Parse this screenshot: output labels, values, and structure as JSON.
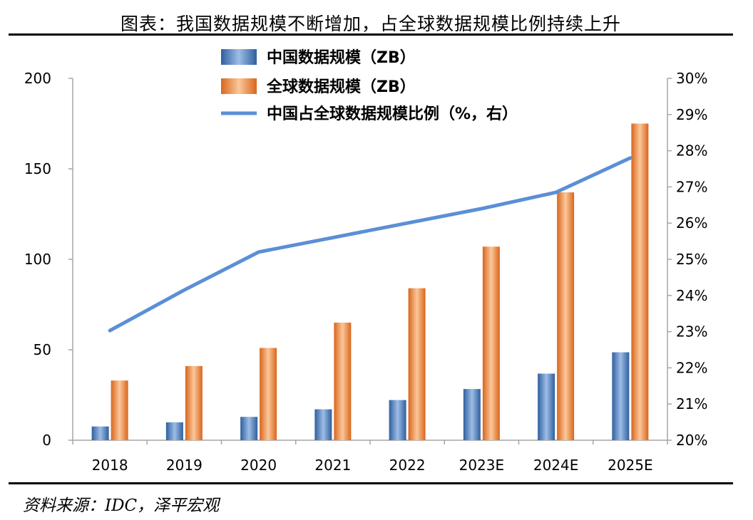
{
  "page": {
    "title": "图表：我国数据规模不断增加，占全球数据规模比例持续上升",
    "source": "资料来源：IDC，泽平宏观"
  },
  "chart_data": {
    "type": "bar",
    "title": "图表：我国数据规模不断增加，占全球数据规模比例持续上升",
    "categories": [
      "2018",
      "2019",
      "2020",
      "2021",
      "2022",
      "2023E",
      "2024E",
      "2025E"
    ],
    "series": [
      {
        "name": "中国数据规模（ZB）",
        "type": "bar",
        "axis": "left",
        "color": "#4a7ebb",
        "values": [
          7.6,
          9.9,
          12.9,
          17.1,
          22.2,
          28.3,
          36.8,
          48.6
        ]
      },
      {
        "name": "全球数据规模（ZB）",
        "type": "bar",
        "axis": "left",
        "color": "#ed7d31",
        "values": [
          33,
          41,
          51,
          65,
          84,
          107,
          137,
          175
        ]
      },
      {
        "name": "中国占全球数据规模比例（%，右）",
        "type": "line",
        "axis": "right",
        "color": "#5b8fd6",
        "values": [
          23.03,
          24.15,
          25.2,
          25.6,
          26.0,
          26.4,
          26.85,
          27.8
        ]
      }
    ],
    "left_axis": {
      "ylim": [
        0,
        200
      ],
      "ticks": [
        "0",
        "50",
        "100",
        "150",
        "200"
      ]
    },
    "right_axis": {
      "ylim": [
        20,
        30
      ],
      "ticks": [
        "20%",
        "21%",
        "22%",
        "23%",
        "24%",
        "25%",
        "26%",
        "27%",
        "28%",
        "29%",
        "30%"
      ]
    },
    "legend_position": "top-center",
    "grid": false
  }
}
